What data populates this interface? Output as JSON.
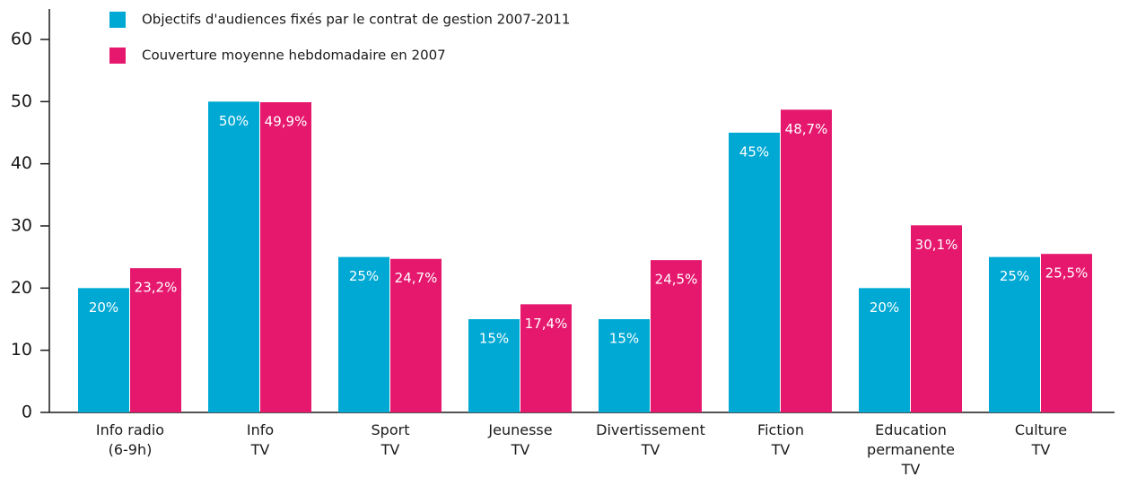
{
  "chart_data": {
    "type": "bar",
    "categories": [
      "Info radio\n(6-9h)",
      "Info\nTV",
      "Sport\nTV",
      "Jeunesse\nTV",
      "Divertissement\nTV",
      "Fiction\nTV",
      "Education\npermanente\nTV",
      "Culture\nTV"
    ],
    "series": [
      {
        "name": "Objectifs d'audiences fixés par le contrat de gestion 2007-2011",
        "color": "#00a9d4",
        "values": [
          20,
          50,
          25,
          15,
          15,
          45,
          20,
          25
        ],
        "value_labels": [
          "20%",
          "50%",
          "25%",
          "15%",
          "15%",
          "45%",
          "20%",
          "25%"
        ]
      },
      {
        "name": "Couverture moyenne hebdomadaire en 2007",
        "color": "#e5186e",
        "values": [
          23.2,
          49.9,
          24.7,
          17.4,
          24.5,
          48.7,
          30.1,
          25.5
        ],
        "value_labels": [
          "23,2%",
          "49,9%",
          "24,7%",
          "17,4%",
          "24,5%",
          "48,7%",
          "30,1%",
          "25,5%"
        ]
      }
    ],
    "ylim": [
      0,
      60
    ],
    "yticks": [
      0,
      10,
      20,
      30,
      40,
      50,
      60
    ]
  }
}
